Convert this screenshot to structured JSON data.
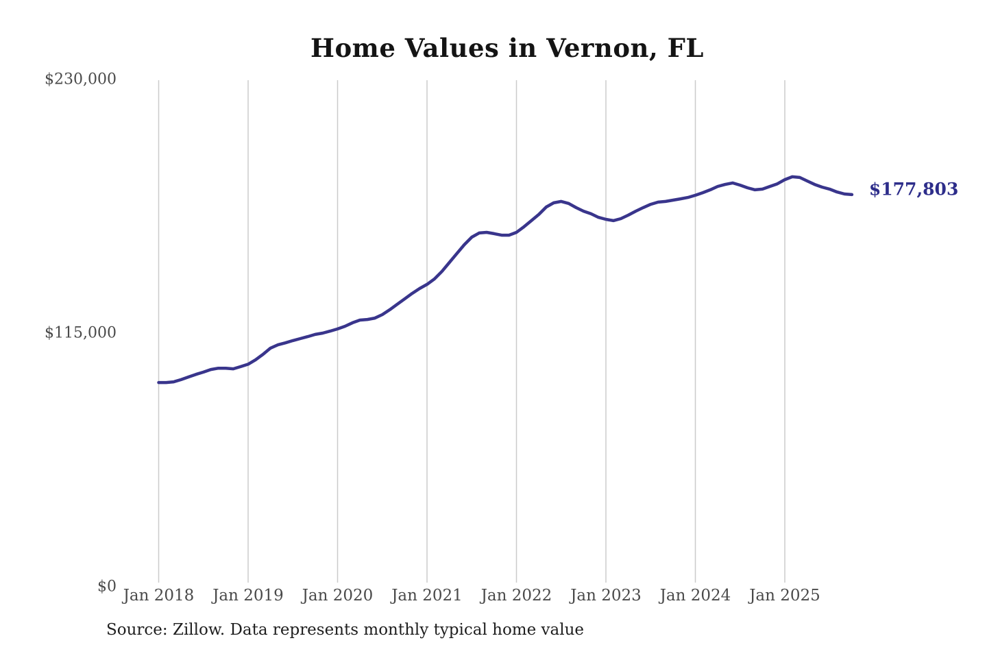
{
  "chart": {
    "title": "Home Values in Vernon, FL",
    "end_label": "$177,803",
    "source": "Source: Zillow. Data represents monthly typical home value",
    "colors": {
      "line": "#39358C",
      "end_label": "#2D2D8A",
      "gridline": "#CBCBCB",
      "tick_label": "#4A4A4A",
      "title": "#141414",
      "source": "#1E1E1E",
      "background": "#FFFFFF"
    }
  },
  "chart_data": {
    "type": "line",
    "title": "Home Values in Vernon, FL",
    "xlabel": "",
    "ylabel": "",
    "ylim": [
      0,
      230000
    ],
    "grid": "vertical-only",
    "legend": "none",
    "unit": "USD",
    "frequency": "monthly",
    "y_ticks": [
      {
        "label": "$0",
        "value": 0
      },
      {
        "label": "$115,000",
        "value": 115000
      },
      {
        "label": "$230,000",
        "value": 230000
      }
    ],
    "x_ticks": [
      {
        "label": "Jan 2018",
        "month_index": 0
      },
      {
        "label": "Jan 2019",
        "month_index": 12
      },
      {
        "label": "Jan 2020",
        "month_index": 24
      },
      {
        "label": "Jan 2021",
        "month_index": 36
      },
      {
        "label": "Jan 2022",
        "month_index": 48
      },
      {
        "label": "Jan 2023",
        "month_index": 60
      },
      {
        "label": "Jan 2024",
        "month_index": 72
      },
      {
        "label": "Jan 2025",
        "month_index": 84
      }
    ],
    "series": [
      {
        "name": "Monthly typical home value",
        "start_month": "2018-01",
        "end_month": "2025-10",
        "latest_value": 177803,
        "values": [
          92600,
          92600,
          92900,
          93900,
          95100,
          96300,
          97300,
          98500,
          99100,
          99100,
          98800,
          99800,
          100900,
          102900,
          105400,
          108200,
          109700,
          110600,
          111600,
          112500,
          113400,
          114400,
          115000,
          115900,
          116900,
          118100,
          119700,
          120900,
          121200,
          121800,
          123400,
          125600,
          128100,
          130500,
          133000,
          135200,
          137100,
          139600,
          143000,
          147000,
          151100,
          155100,
          158500,
          160400,
          160700,
          160100,
          159400,
          159400,
          160700,
          163200,
          166000,
          168800,
          172200,
          174100,
          174700,
          173800,
          171900,
          170300,
          169100,
          167500,
          166600,
          166000,
          166900,
          168500,
          170300,
          171900,
          173400,
          174400,
          174700,
          175300,
          175900,
          176500,
          177500,
          178700,
          180000,
          181500,
          182400,
          183100,
          182100,
          180900,
          180000,
          180300,
          181500,
          182700,
          184600,
          185900,
          185600,
          184000,
          182400,
          181200,
          180300,
          179000,
          178100,
          177803
        ]
      }
    ]
  }
}
